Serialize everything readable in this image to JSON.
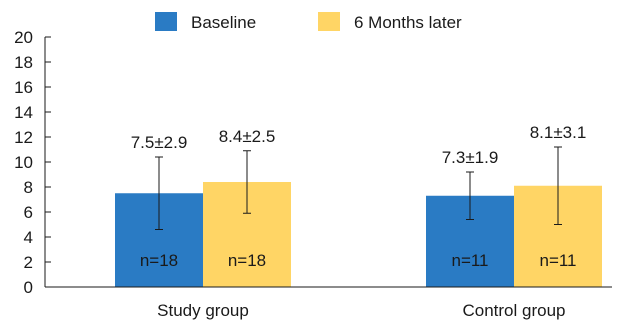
{
  "chart_data": {
    "type": "bar",
    "categories": [
      "Study group",
      "Control group"
    ],
    "series": [
      {
        "name": "Baseline",
        "color": "#2a7bc4",
        "values": [
          7.5,
          7.3
        ],
        "errors": [
          2.9,
          1.9
        ],
        "value_labels": [
          "7.5±2.9",
          "7.3±1.9"
        ],
        "n_labels": [
          "n=18",
          "n=11"
        ]
      },
      {
        "name": "6 Months later",
        "color": "#ffd565",
        "values": [
          8.4,
          8.1
        ],
        "errors": [
          2.5,
          3.1
        ],
        "value_labels": [
          "8.4±2.5",
          "8.1±3.1"
        ],
        "n_labels": [
          "n=18",
          "n=11"
        ]
      }
    ],
    "ylim": [
      0,
      20
    ],
    "yticks": [
      "0",
      "2",
      "4",
      "6",
      "8",
      "10",
      "12",
      "14",
      "16",
      "18",
      "20"
    ],
    "legend_position": "top",
    "grid": false
  }
}
